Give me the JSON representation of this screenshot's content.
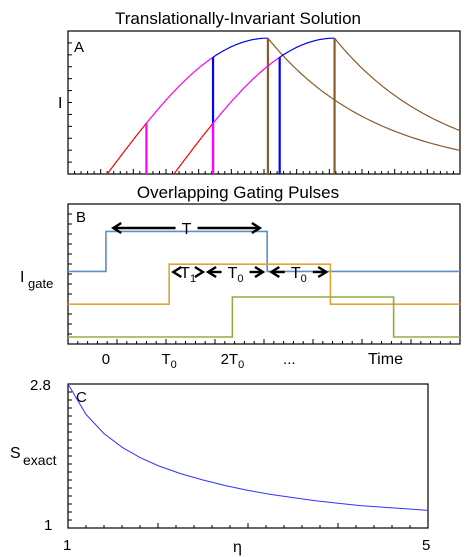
{
  "chart_data": [
    {
      "type": "line",
      "panel": "A",
      "title": "Translationally-Invariant Solution",
      "ylabel": "I",
      "xlabel": "",
      "grid": false,
      "description_series": [
        {
          "name": "",
          "color": "#ff0000"
        },
        {
          "name": "",
          "color": "#ff00ff"
        },
        {
          "name": "",
          "color": "#0000ff"
        },
        {
          "name": "",
          "color": "#8b5a2b"
        }
      ],
      "gate_markers": [
        0.2,
        0.37,
        0.54,
        0.71
      ],
      "pulse_starts": [
        0.1,
        0.27
      ],
      "pulse_peaks": [
        0.51,
        0.68
      ]
    },
    {
      "type": "line",
      "panel": "B",
      "title": "Overlapping Gating Pulses",
      "ylabel_main": "I",
      "ylabel_sub": "gate",
      "xlabel": "Time",
      "x_ticks": [
        {
          "main": "0",
          "sub": "",
          "x": 0
        },
        {
          "main": "T",
          "sub": "0",
          "x": 1
        },
        {
          "main": "2T",
          "sub": "0",
          "x": 2
        },
        {
          "main": "...",
          "sub": "",
          "x": 2.9
        }
      ],
      "xlim": [
        -0.6,
        5.6
      ],
      "series": [
        {
          "name": "",
          "color": "#5b8fc5",
          "on": 0,
          "off": 2.55,
          "base_level": 0.82,
          "high_level": 1.32
        },
        {
          "name": "",
          "color": "#e0a437",
          "on": 1,
          "off": 3.55,
          "base_level": 0.41,
          "high_level": 0.91
        },
        {
          "name": "",
          "color": "#8fad3f",
          "on": 2,
          "off": 4.55,
          "base_level": 0.0,
          "high_level": 0.5
        }
      ],
      "annotations": [
        {
          "label": "T",
          "sub": "",
          "from": 0.1,
          "to": 2.45
        },
        {
          "label": "T",
          "sub": "1",
          "from": 1.05,
          "to": 1.55
        },
        {
          "label": "T",
          "sub": "0",
          "from": 1.6,
          "to": 2.5
        },
        {
          "label": "T",
          "sub": "0",
          "from": 2.6,
          "to": 3.5
        }
      ]
    },
    {
      "type": "line",
      "panel": "C",
      "title": "",
      "xlabel": "η",
      "ylabel_main": "S",
      "ylabel_sub": "exact",
      "xlim": [
        1,
        5
      ],
      "ylim": [
        1,
        2.8
      ],
      "x_tick_labels": [
        "1",
        "5"
      ],
      "y_tick_labels": [
        "1",
        "2.8"
      ],
      "series": [
        {
          "name": "",
          "color": "#3333ff",
          "x": [
            1.0,
            1.2,
            1.4,
            1.6,
            1.8,
            2.0,
            2.25,
            2.5,
            2.75,
            3.0,
            3.25,
            3.5,
            3.75,
            4.0,
            4.25,
            4.5,
            4.75,
            5.0
          ],
          "y": [
            2.8,
            2.42,
            2.18,
            2.01,
            1.88,
            1.78,
            1.68,
            1.6,
            1.53,
            1.47,
            1.42,
            1.38,
            1.34,
            1.31,
            1.28,
            1.26,
            1.24,
            1.22
          ]
        }
      ]
    }
  ]
}
